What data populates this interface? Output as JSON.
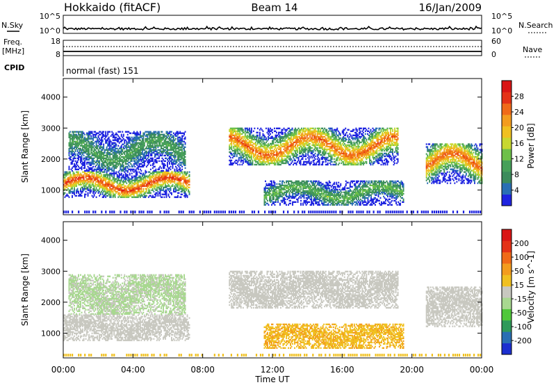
{
  "header": {
    "site": "Hokkaido (fitACF)",
    "beam": "Beam 14",
    "date": "16/Jan/2009"
  },
  "status_panels": {
    "nsky_label": "N.Sky",
    "nsearch_label": "N.Search",
    "noise_ticks": [
      "10^5",
      "10^0"
    ],
    "freq_label": "Freq.",
    "freq_unit": "[MHz]",
    "freq_ticks": [
      "18",
      "8"
    ],
    "nave_label": "Nave",
    "nave_ticks": [
      "60",
      "0"
    ],
    "cpid_label": "CPID",
    "cpid_value": "normal (fast) 151"
  },
  "chart_data": [
    {
      "type": "heatmap",
      "panel": "power",
      "ylabel": "Slant Range [km]",
      "xlabel": "Time UT",
      "x_ticks": [
        "00:00",
        "04:00",
        "08:00",
        "12:00",
        "16:00",
        "20:00",
        "00:00"
      ],
      "y_ticks": [
        "1000",
        "2000",
        "3000",
        "4000"
      ],
      "xlim": [
        0,
        24
      ],
      "ylim": [
        200,
        4600
      ],
      "colorbar_label": "Power [dB]",
      "colorbar_ticks": [
        "28",
        "24",
        "20",
        "16",
        "12",
        "8",
        "4"
      ],
      "colorbar_range": [
        0,
        30
      ],
      "colors": [
        "#1f24e0",
        "#2a6fb4",
        "#3c8c5c",
        "#47a05a",
        "#6ec04a",
        "#c8d830",
        "#f0c020",
        "#f39c1e",
        "#f06a18",
        "#e43217",
        "#d91515"
      ],
      "echo_bands": [
        {
          "t0": 0.0,
          "t1": 7.2,
          "r0": 750,
          "r1": 1600,
          "peak_db": 28
        },
        {
          "t0": 0.3,
          "t1": 7.0,
          "r0": 1600,
          "r1": 2900,
          "peak_db": 12
        },
        {
          "t0": 9.5,
          "t1": 19.2,
          "r0": 1800,
          "r1": 3000,
          "peak_db": 26
        },
        {
          "t0": 11.5,
          "t1": 19.5,
          "r0": 500,
          "r1": 1300,
          "peak_db": 14
        },
        {
          "t0": 20.8,
          "t1": 24.0,
          "r0": 1200,
          "r1": 2500,
          "peak_db": 26
        }
      ]
    },
    {
      "type": "heatmap",
      "panel": "velocity",
      "ylabel": "Slant Range [km]",
      "xlabel": "Time UT",
      "x_ticks": [
        "00:00",
        "04:00",
        "08:00",
        "12:00",
        "16:00",
        "20:00",
        "00:00"
      ],
      "y_ticks": [
        "1000",
        "2000",
        "3000",
        "4000"
      ],
      "xlim": [
        0,
        24
      ],
      "ylim": [
        200,
        4600
      ],
      "colorbar_label": "Velocity [m s^-1]",
      "colorbar_ticks": [
        "200",
        "100",
        "50",
        "15",
        "-15",
        "-50",
        "-100",
        "-200"
      ],
      "colorbar_range": [
        -250,
        250
      ],
      "colors": [
        "#1c2fd0",
        "#2a6fb4",
        "#2f9a5a",
        "#50c83a",
        "#a8d890",
        "#c8c8c0",
        "#f0c020",
        "#f39c1e",
        "#f06a18",
        "#e43217",
        "#d91515"
      ],
      "echo_bands": [
        {
          "t0": 0.0,
          "t1": 7.2,
          "r0": 750,
          "r1": 1600,
          "typical_velocity": 0
        },
        {
          "t0": 0.3,
          "t1": 7.0,
          "r0": 1600,
          "r1": 2900,
          "typical_velocity": -30
        },
        {
          "t0": 9.5,
          "t1": 19.2,
          "r0": 1800,
          "r1": 3000,
          "typical_velocity": 0
        },
        {
          "t0": 11.5,
          "t1": 19.5,
          "r0": 500,
          "r1": 1300,
          "typical_velocity": 60
        },
        {
          "t0": 20.8,
          "t1": 24.0,
          "r0": 1200,
          "r1": 2500,
          "typical_velocity": 0
        }
      ]
    }
  ]
}
